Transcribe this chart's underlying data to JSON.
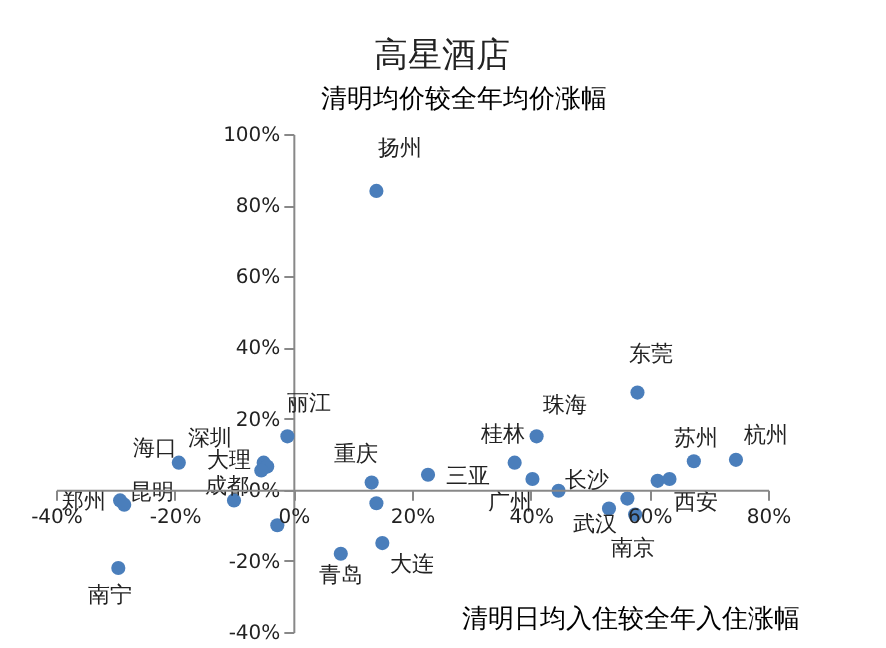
{
  "chart_data": {
    "type": "scatter",
    "title": "高星酒店",
    "xlabel": "清明日均入住较全年入住涨幅",
    "ylabel": "清明均价较全年均价涨幅",
    "x": [
      14,
      -1,
      -19.3,
      -5,
      -4.4,
      -5.4,
      -10,
      -29.2,
      -28.5,
      -29.5,
      -2.7,
      13.2,
      14,
      8,
      15,
      22.7,
      41,
      37.3,
      40.3,
      44.7,
      53.2,
      56.3,
      57.6,
      58,
      61.4,
      63.4,
      67.5,
      74.6
    ],
    "series": [
      {
        "color": "#4a7ebb",
        "values": [
          84,
          15,
          7.6,
          7.6,
          6.5,
          5.4,
          -3,
          -3,
          -4.2,
          -22,
          -10,
          2,
          -3.8,
          -18,
          -15,
          4.2,
          15,
          7.6,
          3,
          -0.3,
          -5.3,
          -2.5,
          -7,
          27.3,
          2.5,
          3,
          8,
          8.4
        ]
      }
    ],
    "marker": "circle",
    "xlim": [
      -40,
      80
    ],
    "ylim": [
      -40,
      100
    ],
    "xticks": [
      {
        "value": -40,
        "label": "-40%"
      },
      {
        "value": -20,
        "label": "-20%"
      },
      {
        "value": 0,
        "label": "0%"
      },
      {
        "value": 20,
        "label": "20%"
      },
      {
        "value": 40,
        "label": "40%"
      },
      {
        "value": 60,
        "label": "60%"
      },
      {
        "value": 80,
        "label": "80%"
      }
    ],
    "yticks": [
      {
        "value": -40,
        "label": "-40%"
      },
      {
        "value": -20,
        "label": "-20%"
      },
      {
        "value": 0,
        "label": "0%"
      },
      {
        "value": 20,
        "label": "20%"
      },
      {
        "value": 40,
        "label": "40%"
      },
      {
        "value": 60,
        "label": "60%"
      },
      {
        "value": 80,
        "label": "80%"
      },
      {
        "value": 100,
        "label": "100%"
      }
    ],
    "annotations": [
      {
        "text": "扬州",
        "x": 14,
        "y": 84
      },
      {
        "text": "丽江",
        "x": -1,
        "y": 15
      },
      {
        "text": "海口",
        "x": -19.3,
        "y": 7.6
      },
      {
        "text": "深圳",
        "x": -5,
        "y": 7.6
      },
      {
        "text": "大理",
        "x": -4.4,
        "y": 6.5
      },
      {
        "text": "成都",
        "x": -5.4,
        "y": 5.4
      },
      {
        "text": "郑州",
        "x": -29.2,
        "y": -3
      },
      {
        "text": "昆明",
        "x": -28.5,
        "y": -4.2
      },
      {
        "text": "南宁",
        "x": -29.5,
        "y": -22
      },
      {
        "text": "重庆",
        "x": 13.2,
        "y": 2
      },
      {
        "text": "青岛",
        "x": 8,
        "y": -18
      },
      {
        "text": "大连",
        "x": 15,
        "y": -15
      },
      {
        "text": "三亚",
        "x": 22.7,
        "y": 4.2
      },
      {
        "text": "广州",
        "x": 40.3,
        "y": 3
      },
      {
        "text": "桂林",
        "x": 37.3,
        "y": 7.6
      },
      {
        "text": "珠海",
        "x": 41,
        "y": 15
      },
      {
        "text": "长沙",
        "x": 44.7,
        "y": -0.3
      },
      {
        "text": "武汉",
        "x": 53.2,
        "y": -5.3
      },
      {
        "text": "南京",
        "x": 57.6,
        "y": -7
      },
      {
        "text": "西安",
        "x": 63.4,
        "y": 3
      },
      {
        "text": "东莞",
        "x": 58,
        "y": 27.3
      },
      {
        "text": "苏州",
        "x": 67.5,
        "y": 8
      },
      {
        "text": "杭州",
        "x": 74.6,
        "y": 8.4
      }
    ]
  }
}
